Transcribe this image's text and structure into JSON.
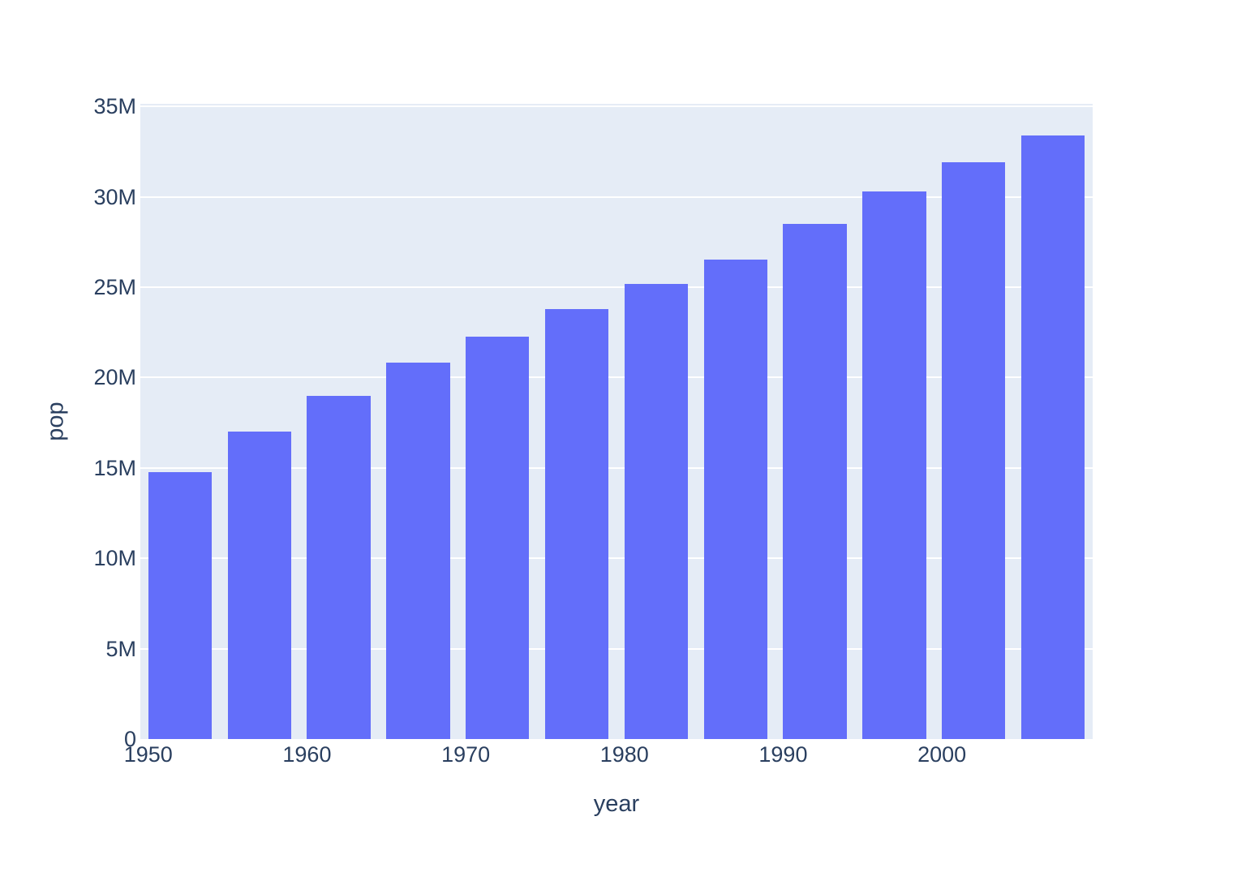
{
  "chart_data": {
    "type": "bar",
    "title": "",
    "xlabel": "year",
    "ylabel": "pop",
    "categories": [
      1952,
      1957,
      1962,
      1967,
      1972,
      1977,
      1982,
      1987,
      1992,
      1997,
      2002,
      2007
    ],
    "values": [
      14785584,
      17010154,
      18985849,
      20819767,
      22284500,
      23796400,
      25201900,
      26549700,
      28523502,
      30305843,
      31902268,
      33390141
    ],
    "series_name": "pop",
    "xlim": [
      1949.5,
      2009.5
    ],
    "ylim": [
      0,
      35150000
    ],
    "bar_width_years": 4,
    "grid": true,
    "legend_position": "none",
    "xticks": [
      {
        "label": "1950",
        "value": 1950
      },
      {
        "label": "1960",
        "value": 1960
      },
      {
        "label": "1970",
        "value": 1970
      },
      {
        "label": "1980",
        "value": 1980
      },
      {
        "label": "1990",
        "value": 1990
      },
      {
        "label": "2000",
        "value": 2000
      }
    ],
    "yticks": [
      {
        "label": "0",
        "value": 0
      },
      {
        "label": "5M",
        "value": 5000000
      },
      {
        "label": "10M",
        "value": 10000000
      },
      {
        "label": "15M",
        "value": 15000000
      },
      {
        "label": "20M",
        "value": 20000000
      },
      {
        "label": "25M",
        "value": 25000000
      },
      {
        "label": "30M",
        "value": 30000000
      },
      {
        "label": "35M",
        "value": 35000000
      }
    ],
    "colors": {
      "bar": "#636EFA",
      "plot_background": "#E5ECF6",
      "gridline": "#FFFFFF",
      "font": "#2A3F5F",
      "figure_background": "#FFFFFF"
    }
  }
}
